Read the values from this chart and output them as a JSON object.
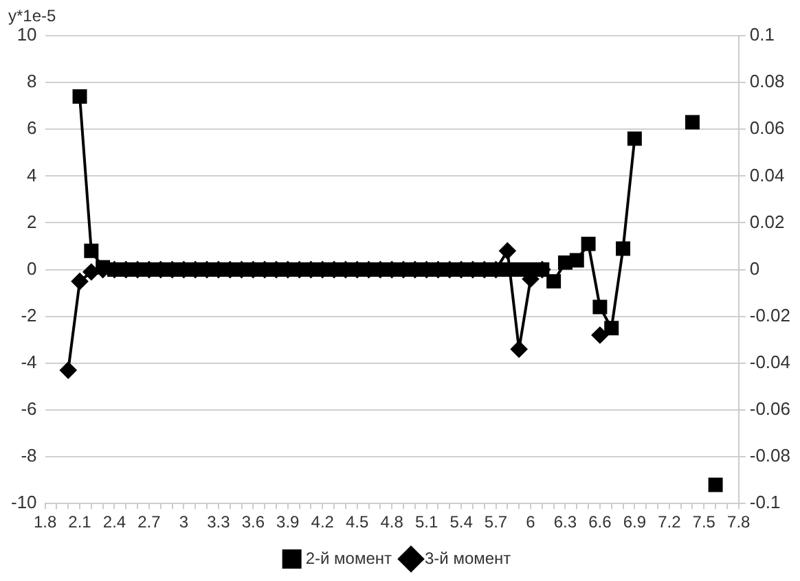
{
  "chart_data": {
    "type": "line",
    "ylabel": "y*1e-5",
    "categories": [
      "1.8",
      null,
      null,
      "2.1",
      null,
      null,
      "2.4",
      null,
      null,
      "2.7",
      null,
      null,
      "3",
      null,
      null,
      "3.3",
      null,
      null,
      "3.6",
      null,
      null,
      "3.9",
      null,
      null,
      "4.2",
      null,
      null,
      "4.5",
      null,
      null,
      "4.8",
      null,
      null,
      "5.1",
      null,
      null,
      "5.4",
      null,
      null,
      "5.7",
      null,
      null,
      "6",
      null,
      null,
      "6.3",
      null,
      null,
      "6.6",
      null,
      null,
      "6.9",
      null,
      null,
      "7.2",
      null,
      null,
      "7.5",
      null,
      null,
      "7.8"
    ],
    "series": [
      {
        "name": "2-й момент",
        "color": "#000000",
        "marker": "square",
        "values": [
          null,
          null,
          null,
          7.4,
          0.8,
          0.1,
          0,
          0,
          0,
          0,
          0,
          0,
          0,
          0,
          0,
          0,
          0,
          0,
          0,
          0,
          0,
          0,
          0,
          0,
          0,
          0,
          0,
          0,
          0,
          0,
          0,
          0,
          0,
          0,
          0,
          0,
          0,
          0,
          0,
          0,
          0,
          0,
          0,
          0,
          -0.5,
          0.3,
          0.4,
          1.1,
          -1.6,
          -2.5,
          0.9,
          5.6,
          null,
          null,
          null,
          null,
          6.3,
          null,
          -9.2,
          null,
          null
        ]
      },
      {
        "name": "3-й момент",
        "color": "#000000",
        "marker": "diamond",
        "axis": "y2",
        "values": [
          null,
          null,
          -0.043,
          -0.005,
          -0.001,
          0,
          0,
          0,
          0,
          0,
          0,
          0,
          0,
          0,
          0,
          0,
          0,
          0,
          0,
          0,
          0,
          0,
          0,
          0,
          0,
          0,
          0,
          0,
          0,
          0,
          0,
          0,
          0,
          0,
          0,
          0,
          0,
          0,
          0,
          0,
          0.008,
          -0.034,
          -0.004,
          0,
          null,
          null,
          null,
          null,
          -0.028,
          null,
          null,
          null,
          null,
          null,
          null,
          null,
          null,
          null,
          null,
          null,
          null
        ]
      }
    ],
    "ylim": [
      -10,
      10
    ],
    "yticks": [
      -10,
      -8,
      -6,
      -4,
      -2,
      0,
      2,
      4,
      6,
      8,
      10
    ],
    "y2lim": [
      -0.1,
      0.1
    ],
    "y2ticks": [
      -0.1,
      -0.08,
      -0.06,
      -0.04,
      -0.02,
      0,
      0.02,
      0.04,
      0.06,
      0.08,
      0.1
    ],
    "grid": "y",
    "legend": "bottom",
    "line_style": "solid"
  }
}
